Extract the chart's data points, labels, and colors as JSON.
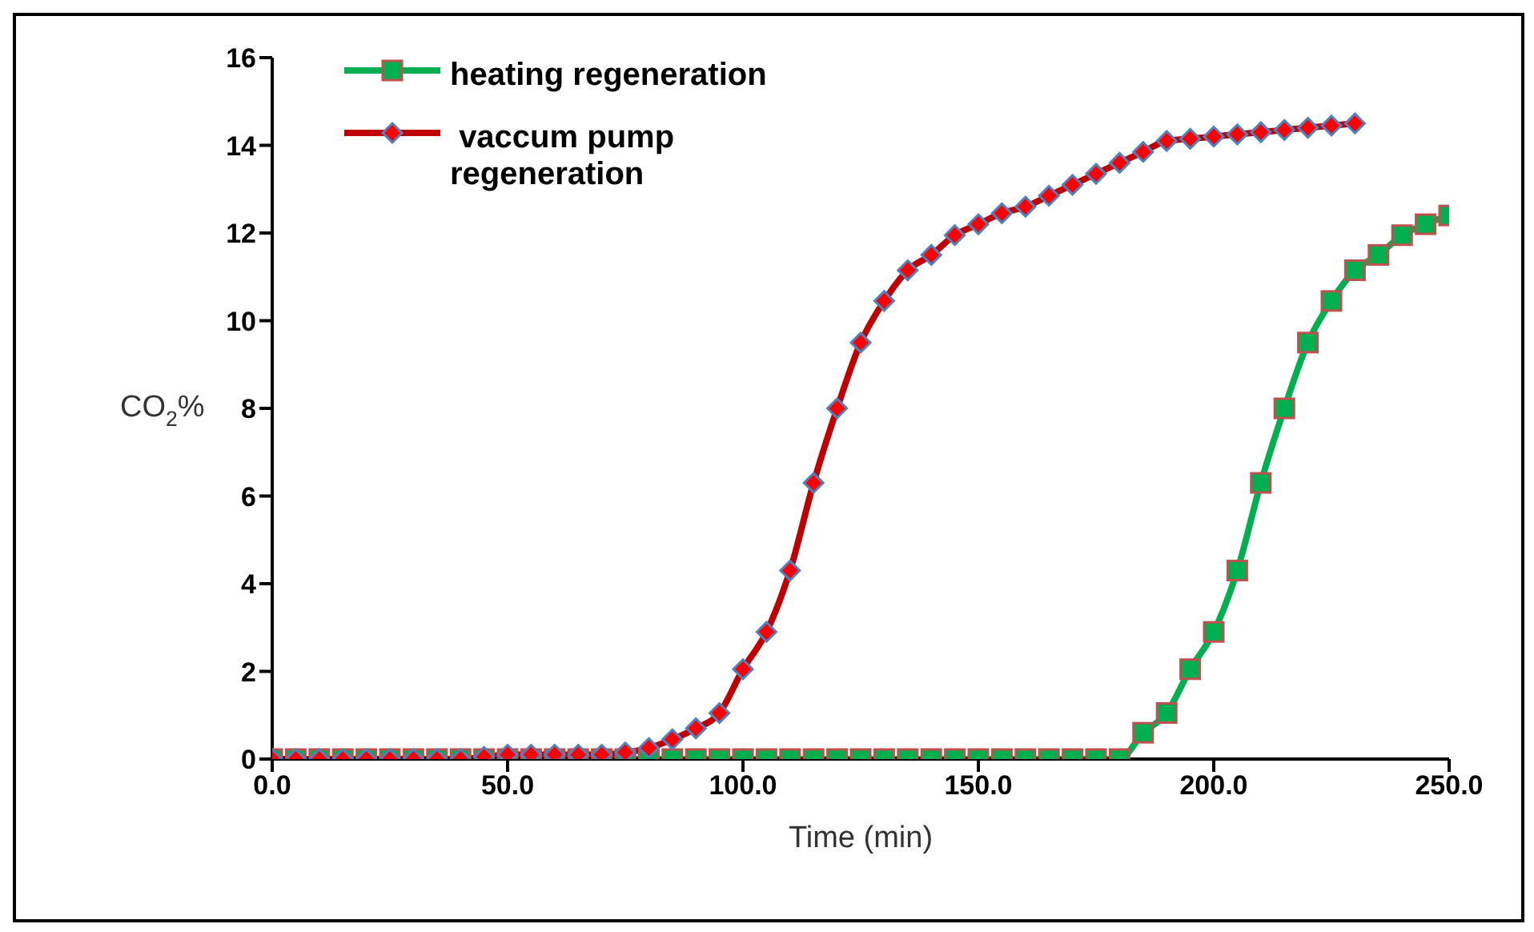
{
  "chart_data": {
    "type": "line",
    "xlabel": "Time (min)",
    "ylabel": "CO$_{2}$%",
    "xlim": [
      0,
      250
    ],
    "ylim": [
      0,
      16
    ],
    "xticks": [
      {
        "value": 0,
        "label": "0.0"
      },
      {
        "value": 50,
        "label": "50.0"
      },
      {
        "value": 100,
        "label": "100.0"
      },
      {
        "value": 150,
        "label": "150.0"
      },
      {
        "value": 200,
        "label": "200.0"
      },
      {
        "value": 250,
        "label": "250.0"
      }
    ],
    "yticks": [
      0,
      2,
      4,
      6,
      8,
      10,
      12,
      14,
      16
    ],
    "grid": false,
    "legend": "top left",
    "line_style": "solid",
    "series": [
      {
        "name": "heating regeneration",
        "color": "#00b050",
        "marker": "square",
        "x": [
          0,
          5,
          10,
          15,
          20,
          25,
          30,
          35,
          40,
          45,
          50,
          55,
          60,
          65,
          70,
          75,
          80,
          85,
          90,
          95,
          100,
          105,
          110,
          115,
          120,
          125,
          130,
          135,
          140,
          145,
          150,
          155,
          160,
          165,
          170,
          175,
          180,
          185,
          190,
          195,
          200,
          205,
          210,
          215,
          220,
          225,
          230,
          235,
          240,
          245,
          250
        ],
        "values": [
          0,
          0,
          0,
          0,
          0,
          0,
          0,
          0,
          0,
          0,
          0,
          0,
          0,
          0,
          0,
          0,
          0,
          0,
          0,
          0,
          0,
          0,
          0,
          0,
          0,
          0,
          0,
          0,
          0,
          0,
          0,
          0,
          0,
          0,
          0,
          0,
          0,
          0.6,
          1.05,
          2.05,
          2.9,
          4.3,
          6.3,
          8.0,
          9.5,
          10.45,
          11.15,
          11.5,
          11.95,
          12.2,
          12.4
        ]
      },
      {
        "name": " vaccum pump regeneration",
        "color": "#c00000",
        "marker": "diamond",
        "x": [
          0,
          5,
          10,
          15,
          20,
          25,
          30,
          35,
          40,
          45,
          50,
          55,
          60,
          65,
          70,
          75,
          80,
          85,
          90,
          95,
          100,
          105,
          110,
          115,
          120,
          125,
          130,
          135,
          140,
          145,
          150,
          155,
          160,
          165,
          170,
          175,
          180,
          185,
          190,
          195,
          200,
          205,
          210,
          215,
          220,
          225,
          230
        ],
        "values": [
          0,
          0,
          0,
          0,
          0,
          0,
          0,
          0,
          0,
          0.05,
          0.1,
          0.1,
          0.1,
          0.1,
          0.1,
          0.15,
          0.25,
          0.45,
          0.7,
          1.05,
          2.05,
          2.9,
          4.3,
          6.3,
          8.0,
          9.5,
          10.45,
          11.15,
          11.5,
          11.95,
          12.2,
          12.45,
          12.6,
          12.85,
          13.1,
          13.35,
          13.6,
          13.85,
          14.1,
          14.15,
          14.2,
          14.25,
          14.3,
          14.35,
          14.4,
          14.45,
          14.5
        ]
      }
    ]
  }
}
